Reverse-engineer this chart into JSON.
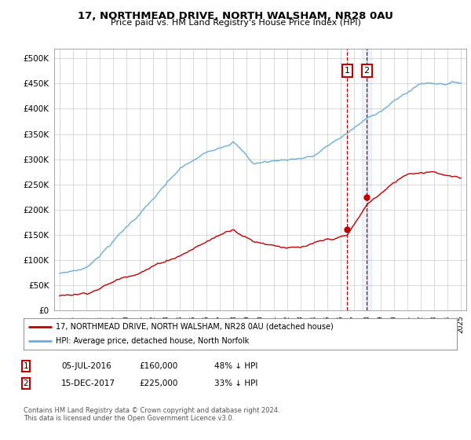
{
  "title": "17, NORTHMEAD DRIVE, NORTH WALSHAM, NR28 0AU",
  "subtitle": "Price paid vs. HM Land Registry's House Price Index (HPI)",
  "ylim": [
    0,
    520000
  ],
  "yticks": [
    0,
    50000,
    100000,
    150000,
    200000,
    250000,
    300000,
    350000,
    400000,
    450000,
    500000
  ],
  "xlim_start": 1994.6,
  "xlim_end": 2025.4,
  "hpi_color": "#6baed6",
  "price_color": "#c00000",
  "sale1_date_decimal": 2016.51,
  "sale1_price": 160000,
  "sale2_date_decimal": 2017.96,
  "sale2_price": 225000,
  "legend_line1": "17, NORTHMEAD DRIVE, NORTH WALSHAM, NR28 0AU (detached house)",
  "legend_line2": "HPI: Average price, detached house, North Norfolk",
  "table_row1": [
    "1",
    "05-JUL-2016",
    "£160,000",
    "48% ↓ HPI"
  ],
  "table_row2": [
    "2",
    "15-DEC-2017",
    "£225,000",
    "33% ↓ HPI"
  ],
  "footnote": "Contains HM Land Registry data © Crown copyright and database right 2024.\nThis data is licensed under the Open Government Licence v3.0.",
  "background_color": "#ffffff",
  "grid_color": "#cccccc"
}
